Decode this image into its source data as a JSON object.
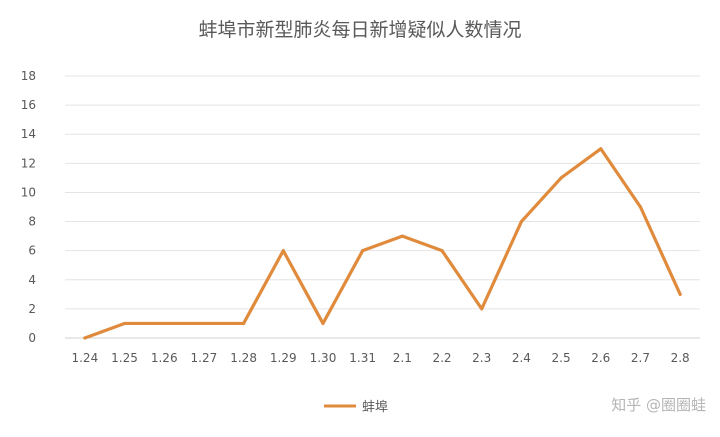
{
  "chart_data": {
    "type": "line",
    "title": "蚌埠市新型肺炎每日新增疑似人数情况",
    "categories": [
      "1.24",
      "1.25",
      "1.26",
      "1.27",
      "1.28",
      "1.29",
      "1.30",
      "1.31",
      "2.1",
      "2.2",
      "2.3",
      "2.4",
      "2.5",
      "2.6",
      "2.7",
      "2.8"
    ],
    "series": [
      {
        "name": "蚌埠",
        "values": [
          0,
          1,
          1,
          1,
          1,
          6,
          1,
          6,
          7,
          6,
          2,
          8,
          11,
          13,
          9,
          3
        ]
      }
    ],
    "ylim": [
      0,
      18
    ],
    "yticks": [
      0,
      2,
      4,
      6,
      8,
      10,
      12,
      14,
      16,
      18
    ],
    "grid": true,
    "legend": "bottom",
    "line_color": "#e08a3c"
  },
  "watermark": "知乎 @圈圈蛙"
}
